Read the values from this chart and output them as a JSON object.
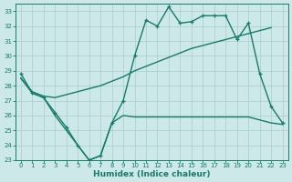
{
  "xlabel": "Humidex (Indice chaleur)",
  "bg_color": "#cce8e8",
  "line_color": "#1a7a6a",
  "grid_color": "#a8cccc",
  "xlim": [
    -0.5,
    23.5
  ],
  "ylim": [
    23,
    33.5
  ],
  "yticks": [
    23,
    24,
    25,
    26,
    27,
    28,
    29,
    30,
    31,
    32,
    33
  ],
  "xticks": [
    0,
    1,
    2,
    3,
    4,
    5,
    6,
    7,
    8,
    9,
    10,
    11,
    12,
    13,
    14,
    15,
    16,
    17,
    18,
    19,
    20,
    21,
    22,
    23
  ],
  "line1_x": [
    0,
    1,
    2,
    3,
    4,
    5,
    6,
    7,
    8,
    9,
    10,
    11,
    12,
    13,
    14,
    15,
    16,
    17,
    18,
    19,
    20,
    21,
    22
  ],
  "line1_y": [
    28.5,
    27.6,
    27.3,
    27.2,
    27.4,
    27.6,
    27.8,
    28.0,
    28.3,
    28.6,
    29.0,
    29.3,
    29.6,
    29.9,
    30.2,
    30.5,
    30.7,
    30.9,
    31.1,
    31.3,
    31.5,
    31.7,
    31.9
  ],
  "line2_x": [
    0,
    1,
    2,
    3,
    4,
    5,
    6,
    7,
    8,
    9,
    10,
    11,
    12,
    13,
    14,
    15,
    16,
    17,
    18,
    19,
    20,
    21,
    22,
    23
  ],
  "line2_y": [
    28.8,
    27.5,
    27.2,
    26.2,
    25.2,
    24.0,
    23.0,
    23.3,
    25.5,
    27.0,
    30.0,
    32.4,
    32.0,
    33.3,
    32.2,
    32.3,
    32.7,
    32.7,
    32.7,
    31.1,
    32.2,
    28.8,
    26.6,
    25.5
  ],
  "line3_x": [
    0,
    1,
    2,
    3,
    4,
    5,
    6,
    7,
    8,
    9,
    10,
    11,
    12,
    13,
    14,
    15,
    16,
    17,
    18,
    19,
    20,
    21,
    22,
    23
  ],
  "line3_y": [
    28.5,
    27.5,
    27.2,
    26.0,
    25.0,
    24.0,
    23.0,
    23.3,
    25.5,
    26.0,
    25.9,
    25.9,
    25.9,
    25.9,
    25.9,
    25.9,
    25.9,
    25.9,
    25.9,
    25.9,
    25.9,
    25.7,
    25.5,
    25.4
  ]
}
